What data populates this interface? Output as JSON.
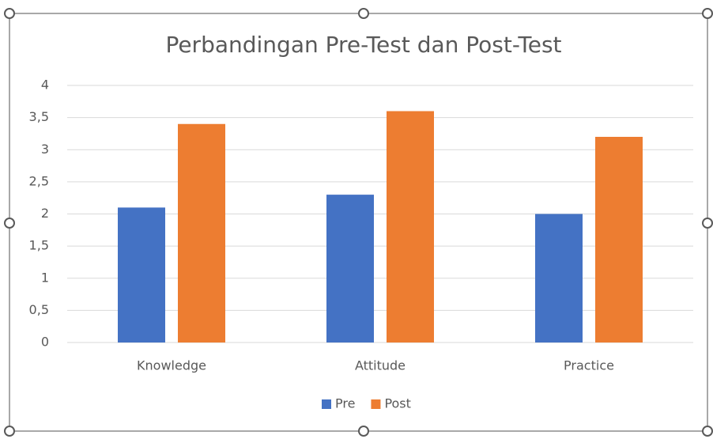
{
  "chart_data": {
    "type": "bar",
    "title": "Perbandingan Pre-Test dan Post-Test",
    "categories": [
      "Knowledge",
      "Attitude",
      "Practice"
    ],
    "series": [
      {
        "name": "Pre",
        "color": "#4472c4",
        "values": [
          2.1,
          2.3,
          2.0
        ]
      },
      {
        "name": "Post",
        "color": "#ed7d31",
        "values": [
          3.4,
          3.6,
          3.2
        ]
      }
    ],
    "ylim": [
      0,
      4
    ],
    "yticks": [
      0,
      {
        "value": 0.5,
        "label": "0,5"
      },
      1,
      {
        "value": 1.5,
        "label": "1,5"
      },
      2,
      {
        "value": 2.5,
        "label": "2,5"
      },
      3,
      {
        "value": 3.5,
        "label": "3,5"
      },
      4
    ],
    "grid": true,
    "legend": "bottom"
  }
}
